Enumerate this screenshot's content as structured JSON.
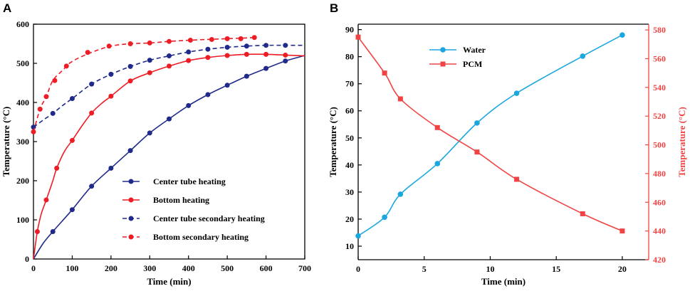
{
  "chart_data": [
    {
      "panel": "A",
      "type": "line",
      "xlabel": "Time (min)",
      "ylabel": "Temperature (°C)",
      "xlim": [
        0,
        700
      ],
      "ylim": [
        0,
        600
      ],
      "xticks": [
        0,
        100,
        200,
        300,
        400,
        500,
        600,
        700
      ],
      "yticks": [
        0,
        100,
        200,
        300,
        400,
        500,
        600
      ],
      "legend_position": "bottom-right",
      "series": [
        {
          "name": "Center tube heating",
          "color": "#1f2a8a",
          "style": "solid",
          "fit": [
            [
              0,
              0
            ],
            [
              25,
              40
            ],
            [
              50,
              70
            ],
            [
              75,
              98
            ],
            [
              100,
              126
            ],
            [
              150,
              186
            ],
            [
              200,
              232
            ],
            [
              250,
              277
            ],
            [
              300,
              322
            ],
            [
              350,
              358
            ],
            [
              400,
              392
            ],
            [
              450,
              420
            ],
            [
              500,
              444
            ],
            [
              550,
              467
            ],
            [
              600,
              487
            ],
            [
              650,
              506
            ],
            [
              700,
              520
            ]
          ],
          "x": [
            50,
            100,
            150,
            200,
            250,
            300,
            350,
            400,
            450,
            500,
            550,
            600,
            650
          ],
          "y": [
            70,
            126,
            186,
            232,
            277,
            322,
            358,
            392,
            420,
            444,
            467,
            487,
            506
          ]
        },
        {
          "name": "Bottom heating",
          "color": "#ee1c25",
          "style": "solid",
          "fit": [
            [
              0,
              0
            ],
            [
              10,
              70
            ],
            [
              20,
              115
            ],
            [
              33,
              151
            ],
            [
              50,
              200
            ],
            [
              60,
              232
            ],
            [
              80,
              275
            ],
            [
              100,
              303
            ],
            [
              125,
              340
            ],
            [
              150,
              373
            ],
            [
              175,
              397
            ],
            [
              200,
              416
            ],
            [
              250,
              455
            ],
            [
              300,
              476
            ],
            [
              350,
              493
            ],
            [
              400,
              507
            ],
            [
              450,
              515
            ],
            [
              500,
              520
            ],
            [
              550,
              523
            ],
            [
              600,
              523
            ],
            [
              650,
              521
            ],
            [
              700,
              519
            ]
          ],
          "x": [
            10,
            33,
            60,
            100,
            150,
            200,
            250,
            300,
            350,
            400,
            450,
            500,
            550,
            600,
            650
          ],
          "y": [
            70,
            151,
            232,
            303,
            373,
            416,
            455,
            476,
            493,
            507,
            515,
            520,
            523,
            523,
            521
          ]
        },
        {
          "name": "Center tube secondary heating",
          "color": "#1f2a8a",
          "style": "dashed",
          "fit": [
            [
              0,
              337
            ],
            [
              25,
              355
            ],
            [
              50,
              372
            ],
            [
              75,
              392
            ],
            [
              100,
              410
            ],
            [
              150,
              447
            ],
            [
              200,
              472
            ],
            [
              250,
              492
            ],
            [
              300,
              508
            ],
            [
              350,
              519
            ],
            [
              400,
              529
            ],
            [
              450,
              536
            ],
            [
              500,
              541
            ],
            [
              550,
              544
            ],
            [
              600,
              546
            ],
            [
              650,
              546
            ],
            [
              700,
              546
            ]
          ],
          "x": [
            0,
            50,
            100,
            150,
            200,
            250,
            300,
            350,
            400,
            450,
            500,
            550,
            600,
            650
          ],
          "y": [
            337,
            372,
            410,
            447,
            472,
            492,
            508,
            519,
            529,
            536,
            541,
            544,
            546,
            546
          ]
        },
        {
          "name": "Bottom secondary heating",
          "color": "#ee1c25",
          "style": "dashed",
          "fit": [
            [
              0,
              325
            ],
            [
              17,
              383
            ],
            [
              33,
              415
            ],
            [
              50,
              456
            ],
            [
              75,
              482
            ],
            [
              100,
              505
            ],
            [
              150,
              528
            ],
            [
              200,
              544
            ],
            [
              250,
              550
            ],
            [
              300,
              552
            ],
            [
              350,
              556
            ],
            [
              400,
              559
            ],
            [
              450,
              561
            ],
            [
              500,
              563
            ],
            [
              550,
              565
            ],
            [
              570,
              566
            ]
          ],
          "x": [
            0,
            17,
            33,
            55,
            85,
            140,
            195,
            250,
            300,
            350,
            405,
            460,
            500,
            535,
            570
          ],
          "y": [
            325,
            383,
            415,
            456,
            493,
            528,
            544,
            550,
            552,
            556,
            559,
            561,
            563,
            563,
            566
          ]
        }
      ]
    },
    {
      "panel": "B",
      "type": "line",
      "xlabel": "Time (min)",
      "ylabel_left": "Temperature (°C)",
      "ylabel_right": "Temperature (°C)",
      "xlim": [
        0,
        22
      ],
      "ylim_left": [
        5,
        92
      ],
      "ylim_right": [
        420,
        584
      ],
      "xticks": [
        0,
        5,
        10,
        15,
        20
      ],
      "yticks_left": [
        10,
        20,
        30,
        40,
        50,
        60,
        70,
        80,
        90
      ],
      "yticks_right": [
        420,
        440,
        460,
        480,
        500,
        520,
        540,
        560,
        580
      ],
      "legend_position": "top-left",
      "series": [
        {
          "name": "Water",
          "color": "#1aa7e0",
          "axis": "left",
          "marker": "circle",
          "x": [
            0,
            2,
            3.2,
            6,
            9,
            12,
            17,
            20
          ],
          "y": [
            13.8,
            20.7,
            29.2,
            40.5,
            55.5,
            66.5,
            80.2,
            88.0
          ]
        },
        {
          "name": "PCM",
          "color": "#f04444",
          "axis": "right",
          "marker": "square",
          "x": [
            0,
            2,
            3.2,
            6,
            9,
            12,
            17,
            20
          ],
          "y": [
            575,
            550,
            532,
            512,
            495,
            476,
            452,
            440
          ]
        }
      ]
    }
  ],
  "panels": {
    "a_label": "A",
    "b_label": "B"
  }
}
